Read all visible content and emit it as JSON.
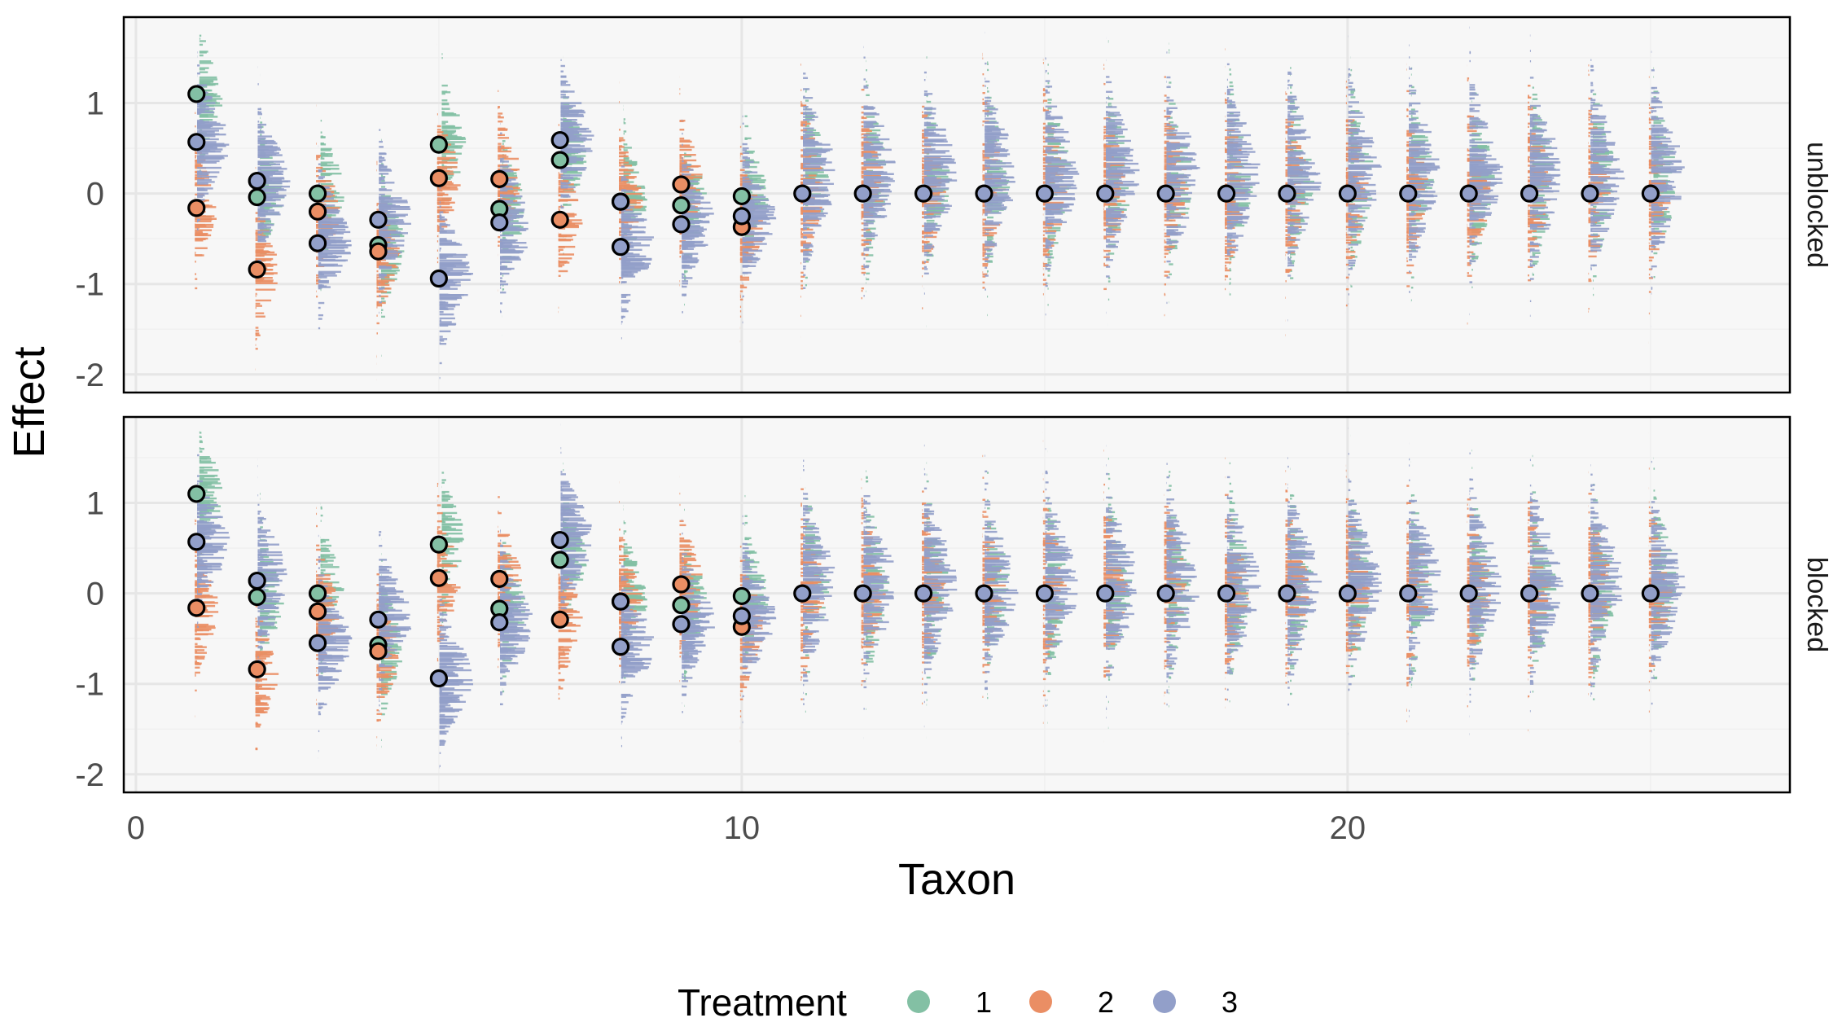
{
  "chart_data": {
    "type": "scatter",
    "xlabel": "Taxon",
    "ylabel": "Effect",
    "xlim": [
      -0.2,
      27.3
    ],
    "ylim": [
      -2.2,
      1.95
    ],
    "x_ticks": [
      0,
      10,
      20
    ],
    "y_ticks": [
      -2,
      -1,
      0,
      1
    ],
    "grid": true,
    "legend": {
      "title": "Treatment",
      "position": "bottom",
      "entries": [
        {
          "label": "1",
          "color": "#83c0a4"
        },
        {
          "label": "2",
          "color": "#ea8e64"
        },
        {
          "label": "3",
          "color": "#929fc9"
        }
      ]
    },
    "panels": [
      {
        "label": "unblocked",
        "points": [
          {
            "taxon": 1,
            "values": [
              1.1,
              -0.16,
              0.57
            ],
            "color_treatment": [
              1,
              2,
              3
            ]
          },
          {
            "taxon": 2,
            "values": [
              -0.04,
              -0.84,
              0.14
            ],
            "color_treatment": [
              1,
              2,
              3
            ]
          },
          {
            "taxon": 3,
            "values": [
              0.0,
              -0.2,
              -0.55
            ],
            "color_treatment": [
              1,
              2,
              3
            ]
          },
          {
            "taxon": 4,
            "values": [
              -0.57,
              -0.64,
              -0.29
            ],
            "color_treatment": [
              1,
              2,
              3
            ]
          },
          {
            "taxon": 5,
            "values": [
              0.54,
              0.17,
              -0.94
            ],
            "color_treatment": [
              1,
              2,
              3
            ]
          },
          {
            "taxon": 6,
            "values": [
              -0.17,
              0.16,
              -0.32
            ],
            "color_treatment": [
              1,
              2,
              3
            ]
          },
          {
            "taxon": 7,
            "values": [
              0.37,
              -0.29,
              0.59
            ],
            "color_treatment": [
              1,
              2,
              3
            ]
          },
          {
            "taxon": 8,
            "values": [
              -0.09,
              -0.09,
              -0.59
            ],
            "color_treatment": [
              1,
              3,
              3
            ]
          },
          {
            "taxon": 9,
            "values": [
              -0.13,
              0.1,
              -0.34
            ],
            "color_treatment": [
              1,
              2,
              3
            ]
          },
          {
            "taxon": 10,
            "values": [
              -0.03,
              -0.37,
              -0.25
            ],
            "color_treatment": [
              1,
              2,
              3
            ]
          }
        ],
        "zero_taxa": [
          11,
          12,
          13,
          14,
          15,
          16,
          17,
          18,
          19,
          20,
          21,
          22,
          23,
          24,
          25
        ]
      },
      {
        "label": "blocked",
        "points": [
          {
            "taxon": 1,
            "values": [
              1.1,
              -0.16,
              0.57
            ],
            "color_treatment": [
              1,
              2,
              3
            ]
          },
          {
            "taxon": 2,
            "values": [
              -0.04,
              -0.84,
              0.14
            ],
            "color_treatment": [
              1,
              2,
              3
            ]
          },
          {
            "taxon": 3,
            "values": [
              0.0,
              -0.2,
              -0.55
            ],
            "color_treatment": [
              1,
              2,
              3
            ]
          },
          {
            "taxon": 4,
            "values": [
              -0.57,
              -0.64,
              -0.29
            ],
            "color_treatment": [
              1,
              2,
              3
            ]
          },
          {
            "taxon": 5,
            "values": [
              0.54,
              0.17,
              -0.94
            ],
            "color_treatment": [
              1,
              2,
              3
            ]
          },
          {
            "taxon": 6,
            "values": [
              -0.17,
              0.16,
              -0.32
            ],
            "color_treatment": [
              1,
              2,
              3
            ]
          },
          {
            "taxon": 7,
            "values": [
              0.37,
              -0.29,
              0.59
            ],
            "color_treatment": [
              1,
              2,
              3
            ]
          },
          {
            "taxon": 8,
            "values": [
              -0.09,
              -0.09,
              -0.59
            ],
            "color_treatment": [
              1,
              3,
              3
            ]
          },
          {
            "taxon": 9,
            "values": [
              -0.13,
              0.1,
              -0.34
            ],
            "color_treatment": [
              1,
              2,
              3
            ]
          },
          {
            "taxon": 10,
            "values": [
              -0.03,
              -0.37,
              -0.25
            ],
            "color_treatment": [
              1,
              2,
              3
            ]
          }
        ],
        "zero_taxa": [
          11,
          12,
          13,
          14,
          15,
          16,
          17,
          18,
          19,
          20,
          21,
          22,
          23,
          24,
          25
        ]
      }
    ]
  }
}
